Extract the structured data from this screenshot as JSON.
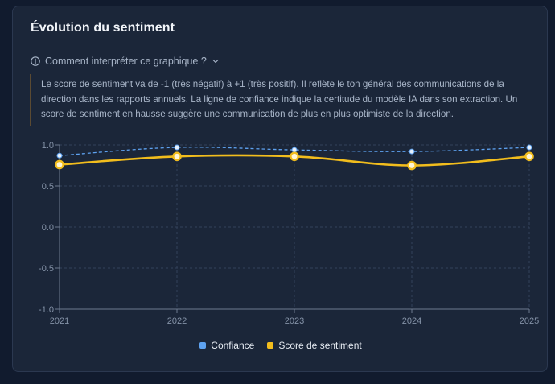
{
  "card": {
    "title": "Évolution du sentiment"
  },
  "info": {
    "toggle_label": "Comment interpréter ce graphique ?",
    "icon": "info-circle-icon",
    "chevron_icon": "chevron-down-icon",
    "text": "Le score de sentiment va de -1 (très négatif) à +1 (très positif). Il reflète le ton général des communications de la direction dans les rapports annuels. La ligne de confiance indique la certitude du modèle IA dans son extraction. Un score de sentiment en hausse suggère une communication de plus en plus optimiste de la direction."
  },
  "colors": {
    "confidence": "#5ea2f0",
    "sentiment": "#f2bd1d",
    "grid": "#33415a",
    "axis": "#6d7a8f",
    "tick_text": "#8593a8"
  },
  "chart_data": {
    "type": "line",
    "title": "",
    "xlabel": "",
    "ylabel": "",
    "x": [
      "2021",
      "2022",
      "2023",
      "2024",
      "2025"
    ],
    "ylim": [
      -1.0,
      1.0
    ],
    "yticks": [
      "1.0",
      "0.5",
      "0.0",
      "-0.5",
      "-1.0"
    ],
    "yticks_values": [
      1.0,
      0.5,
      0.0,
      -0.5,
      -1.0
    ],
    "grid": true,
    "legend_position": "bottom",
    "series": [
      {
        "name": "Confiance",
        "values": [
          0.87,
          0.97,
          0.94,
          0.92,
          0.97
        ],
        "style": "dashed"
      },
      {
        "name": "Score de sentiment",
        "values": [
          0.76,
          0.86,
          0.86,
          0.75,
          0.86
        ],
        "style": "solid"
      }
    ]
  }
}
